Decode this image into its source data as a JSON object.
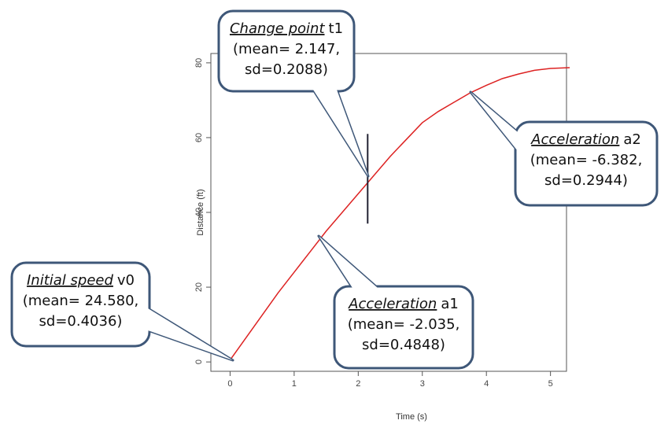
{
  "chart_data": {
    "type": "line",
    "x_label": "Time (s)",
    "y_label": "Distance (ft)",
    "x": [
      0,
      0.25,
      0.5,
      0.75,
      1,
      1.25,
      1.5,
      1.75,
      2,
      2.25,
      2.5,
      2.75,
      3,
      3.25,
      3.5,
      3.75,
      4,
      4.25,
      4.5,
      4.75,
      5,
      5.3
    ],
    "series": [
      {
        "color": "#d22",
        "values": [
          0.5,
          6.5,
          12.5,
          18.5,
          24,
          29.5,
          35,
          40,
          45,
          50,
          55,
          59.5,
          64,
          67,
          69.5,
          72,
          74,
          75.8,
          77,
          78,
          78.5,
          78.7
        ]
      }
    ],
    "changepoint": {
      "x": 2.147,
      "y": [
        37,
        61
      ]
    },
    "xlim": [
      -0.3,
      5.25
    ],
    "ylim": [
      -2.5,
      82.5
    ],
    "xticks": [
      0,
      1,
      2,
      3,
      4,
      5
    ],
    "yticks": [
      0,
      20,
      40,
      60,
      80
    ],
    "annotations": [
      {
        "title": "Change point",
        "symbol": "t1",
        "lines": [
          "(mean= 2.147,",
          "sd=0.2088)"
        ]
      },
      {
        "title": "Acceleration",
        "symbol": "a2",
        "lines": [
          "(mean= -6.382,",
          "sd=0.2944)"
        ]
      },
      {
        "title": "Initial speed",
        "symbol": "v0",
        "lines": [
          "(mean= 24.580,",
          "sd=0.4036)"
        ]
      },
      {
        "title": "Acceleration",
        "symbol": "a1",
        "lines": [
          "(mean= -2.035,",
          "sd=0.4848)"
        ]
      }
    ]
  }
}
